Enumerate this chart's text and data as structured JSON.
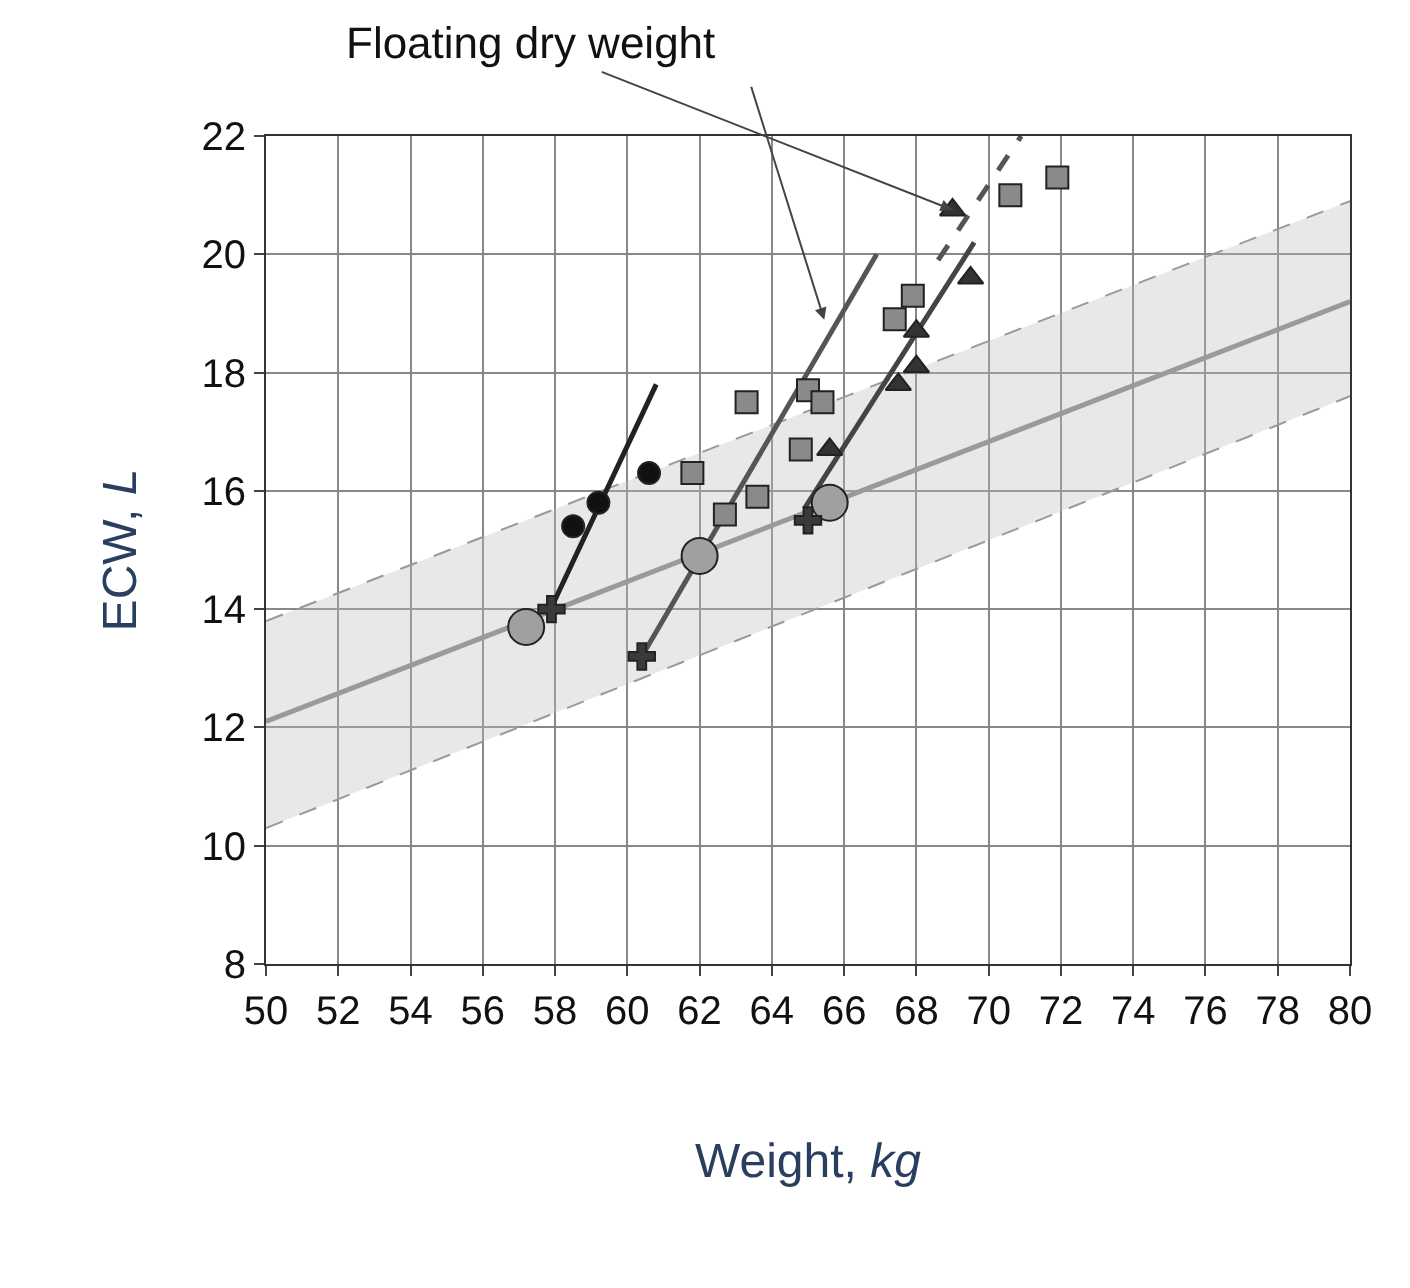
{
  "chart_data": {
    "type": "scatter",
    "xlabel": "Weight, kg",
    "ylabel": "ECW, L",
    "xlim": [
      50,
      80
    ],
    "xticks": [
      50,
      52,
      54,
      56,
      58,
      60,
      62,
      64,
      66,
      68,
      70,
      72,
      74,
      76,
      78,
      80
    ],
    "ylim": [
      8,
      22
    ],
    "yticks": [
      8,
      10,
      12,
      14,
      16,
      18,
      20,
      22
    ],
    "grid": true,
    "annotations": [
      {
        "text": "Floating dry weight",
        "x": 69.0,
        "y": 20.75
      }
    ],
    "series": [
      {
        "type": "line",
        "color": "#9a9a9a",
        "x": [
          50,
          80
        ],
        "values": [
          12.1,
          19.2
        ],
        "lower": [
          10.3,
          17.6
        ],
        "upper": [
          13.8,
          20.9
        ],
        "marker": "none",
        "line_style": "solid"
      },
      {
        "type": "line",
        "color": "#999999",
        "x": [
          50,
          80
        ],
        "values": [
          13.8,
          20.9
        ],
        "marker": "none",
        "line_style": "dashed"
      },
      {
        "type": "line",
        "color": "#999999",
        "x": [
          50,
          80
        ],
        "values": [
          10.3,
          17.6
        ],
        "marker": "none",
        "line_style": "dashed"
      },
      {
        "type": "line",
        "color": "#222222",
        "x": [
          57.8,
          60.8
        ],
        "values": [
          13.9,
          17.8
        ],
        "marker": "none",
        "line_style": "solid"
      },
      {
        "type": "line",
        "color": "#555555",
        "x": [
          60.4,
          66.9
        ],
        "values": [
          13.2,
          20.0
        ],
        "marker": "none",
        "line_style": "solid"
      },
      {
        "type": "line",
        "color": "#444444",
        "x": [
          64.9,
          69.6
        ],
        "values": [
          15.7,
          20.2
        ],
        "marker": "none",
        "line_style": "solid"
      },
      {
        "type": "line",
        "color": "#555555",
        "x": [
          68.6,
          70.9
        ],
        "values": [
          19.9,
          22.0
        ],
        "marker": "none",
        "line_style": "dashed"
      },
      {
        "color": "#111111",
        "x": [
          58.5,
          59.2,
          60.6
        ],
        "values": [
          15.4,
          15.8,
          16.3
        ],
        "marker": "circle"
      },
      {
        "color": "#8a8a8a",
        "x": [
          61.8,
          62.7,
          63.3,
          63.6,
          64.8,
          65.0,
          65.4,
          67.4,
          67.9,
          70.6,
          71.9
        ],
        "values": [
          16.3,
          15.6,
          17.5,
          15.9,
          16.7,
          17.7,
          17.5,
          18.9,
          19.3,
          21.0,
          21.3
        ],
        "marker": "square"
      },
      {
        "color": "#333333",
        "x": [
          65.6,
          67.5,
          68.0,
          68.0,
          69.0,
          69.5
        ],
        "values": [
          16.7,
          17.8,
          18.1,
          18.7,
          20.75,
          19.6
        ],
        "marker": "triangle"
      },
      {
        "color": "#a0a0a0",
        "x": [
          57.2,
          62.0,
          65.6
        ],
        "values": [
          13.7,
          14.9,
          15.8
        ],
        "marker": "circle"
      },
      {
        "color": "#3a3a3a",
        "x": [
          57.9,
          60.4,
          65.0
        ],
        "values": [
          14.0,
          13.2,
          15.5
        ],
        "marker": "cross"
      }
    ]
  }
}
